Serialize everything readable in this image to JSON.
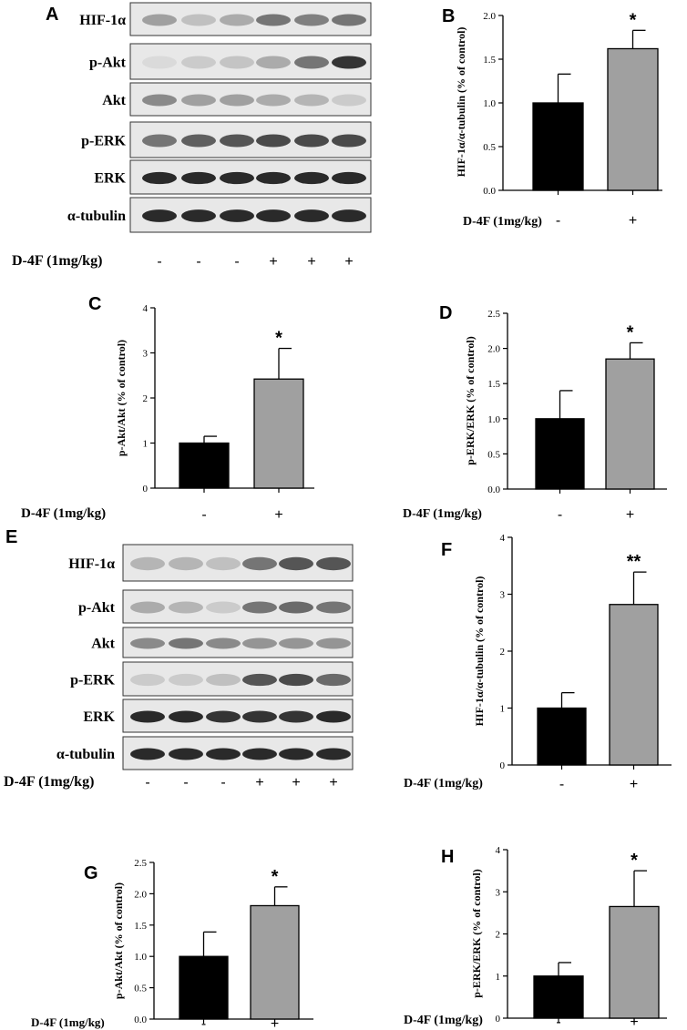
{
  "panels": {
    "A": {
      "letter": "A",
      "rows": [
        "HIF-1α",
        "p-Akt",
        "Akt",
        "p-ERK",
        "ERK",
        "α-tubulin"
      ],
      "treatment_label": "D-4F (1mg/kg)",
      "lanes": [
        "-",
        "-",
        "-",
        "+",
        "+",
        "+"
      ],
      "band_intensity": [
        [
          0.35,
          0.2,
          0.3,
          0.55,
          0.5,
          0.55
        ],
        [
          0.08,
          0.15,
          0.18,
          0.3,
          0.55,
          0.85
        ],
        [
          0.45,
          0.35,
          0.35,
          0.3,
          0.25,
          0.15
        ],
        [
          0.55,
          0.65,
          0.7,
          0.75,
          0.75,
          0.75
        ],
        [
          0.9,
          0.9,
          0.9,
          0.9,
          0.9,
          0.9
        ],
        [
          0.9,
          0.9,
          0.9,
          0.9,
          0.9,
          0.9
        ]
      ]
    },
    "E": {
      "letter": "E",
      "rows": [
        "HIF-1α",
        "p-Akt",
        "Akt",
        "p-ERK",
        "ERK",
        "α-tubulin"
      ],
      "treatment_label": "D-4F (1mg/kg)",
      "lanes": [
        "-",
        "-",
        "-",
        "+",
        "+",
        "+"
      ],
      "band_intensity": [
        [
          0.25,
          0.25,
          0.2,
          0.55,
          0.7,
          0.7
        ],
        [
          0.3,
          0.25,
          0.15,
          0.55,
          0.6,
          0.55
        ],
        [
          0.45,
          0.55,
          0.45,
          0.4,
          0.4,
          0.4
        ],
        [
          0.15,
          0.15,
          0.2,
          0.7,
          0.75,
          0.6
        ],
        [
          0.9,
          0.9,
          0.85,
          0.85,
          0.85,
          0.9
        ],
        [
          0.9,
          0.9,
          0.9,
          0.9,
          0.9,
          0.9
        ]
      ]
    }
  },
  "chart_data": [
    {
      "letter": "B",
      "type": "bar",
      "ylabel": "HIF-1α/α-tubulin (% of control)",
      "xlabel": "D-4F (1mg/kg)",
      "categories": [
        "-",
        "+"
      ],
      "values": [
        1.0,
        1.62
      ],
      "errors": [
        0.33,
        0.21
      ],
      "ylim": [
        0,
        2.0
      ],
      "yticks": [
        "0.0",
        "0.5",
        "1.0",
        "1.5",
        "2.0"
      ],
      "significance": "*",
      "colors": [
        "#000000",
        "#a0a0a0"
      ]
    },
    {
      "letter": "C",
      "type": "bar",
      "ylabel": "p-Akt/Akt (% of control)",
      "xlabel": "D-4F (1mg/kg)",
      "categories": [
        "-",
        "+"
      ],
      "values": [
        1.0,
        2.42
      ],
      "errors": [
        0.15,
        0.68
      ],
      "ylim": [
        0,
        4
      ],
      "yticks": [
        "0",
        "1",
        "2",
        "3",
        "4"
      ],
      "significance": "*",
      "colors": [
        "#000000",
        "#a0a0a0"
      ]
    },
    {
      "letter": "D",
      "type": "bar",
      "ylabel": "p-ERK/ERK (% of control)",
      "xlabel": "D-4F (1mg/kg)",
      "categories": [
        "-",
        "+"
      ],
      "values": [
        1.0,
        1.85
      ],
      "errors": [
        0.4,
        0.23
      ],
      "ylim": [
        0,
        2.5
      ],
      "yticks": [
        "0.0",
        "0.5",
        "1.0",
        "1.5",
        "2.0",
        "2.5"
      ],
      "significance": "*",
      "colors": [
        "#000000",
        "#a0a0a0"
      ]
    },
    {
      "letter": "F",
      "type": "bar",
      "ylabel": "HIF-1α/α-tubulin (% of control)",
      "xlabel": "D-4F (1mg/kg)",
      "categories": [
        "-",
        "+"
      ],
      "values": [
        1.0,
        2.82
      ],
      "errors": [
        0.27,
        0.57
      ],
      "ylim": [
        0,
        4
      ],
      "yticks": [
        "0",
        "1",
        "2",
        "3",
        "4"
      ],
      "significance": "**",
      "colors": [
        "#000000",
        "#a0a0a0"
      ]
    },
    {
      "letter": "G",
      "type": "bar",
      "ylabel": "p-Akt/Akt (% of control)",
      "xlabel": "D-4F (1mg/kg)",
      "categories": [
        "-",
        "+"
      ],
      "values": [
        1.0,
        1.81
      ],
      "errors": [
        0.39,
        0.3
      ],
      "ylim": [
        0,
        2.5
      ],
      "yticks": [
        "0.0",
        "0.5",
        "1.0",
        "1.5",
        "2.0",
        "2.5"
      ],
      "significance": "*",
      "colors": [
        "#000000",
        "#a0a0a0"
      ]
    },
    {
      "letter": "H",
      "type": "bar",
      "ylabel": "p-ERK/ERK (% of control)",
      "xlabel": "D-4F (1mg/kg)",
      "categories": [
        "-",
        "+"
      ],
      "values": [
        1.0,
        2.65
      ],
      "errors": [
        0.32,
        0.85
      ],
      "ylim": [
        0,
        4
      ],
      "yticks": [
        "0",
        "1",
        "2",
        "3",
        "4"
      ],
      "significance": "*",
      "colors": [
        "#000000",
        "#a0a0a0"
      ]
    }
  ]
}
